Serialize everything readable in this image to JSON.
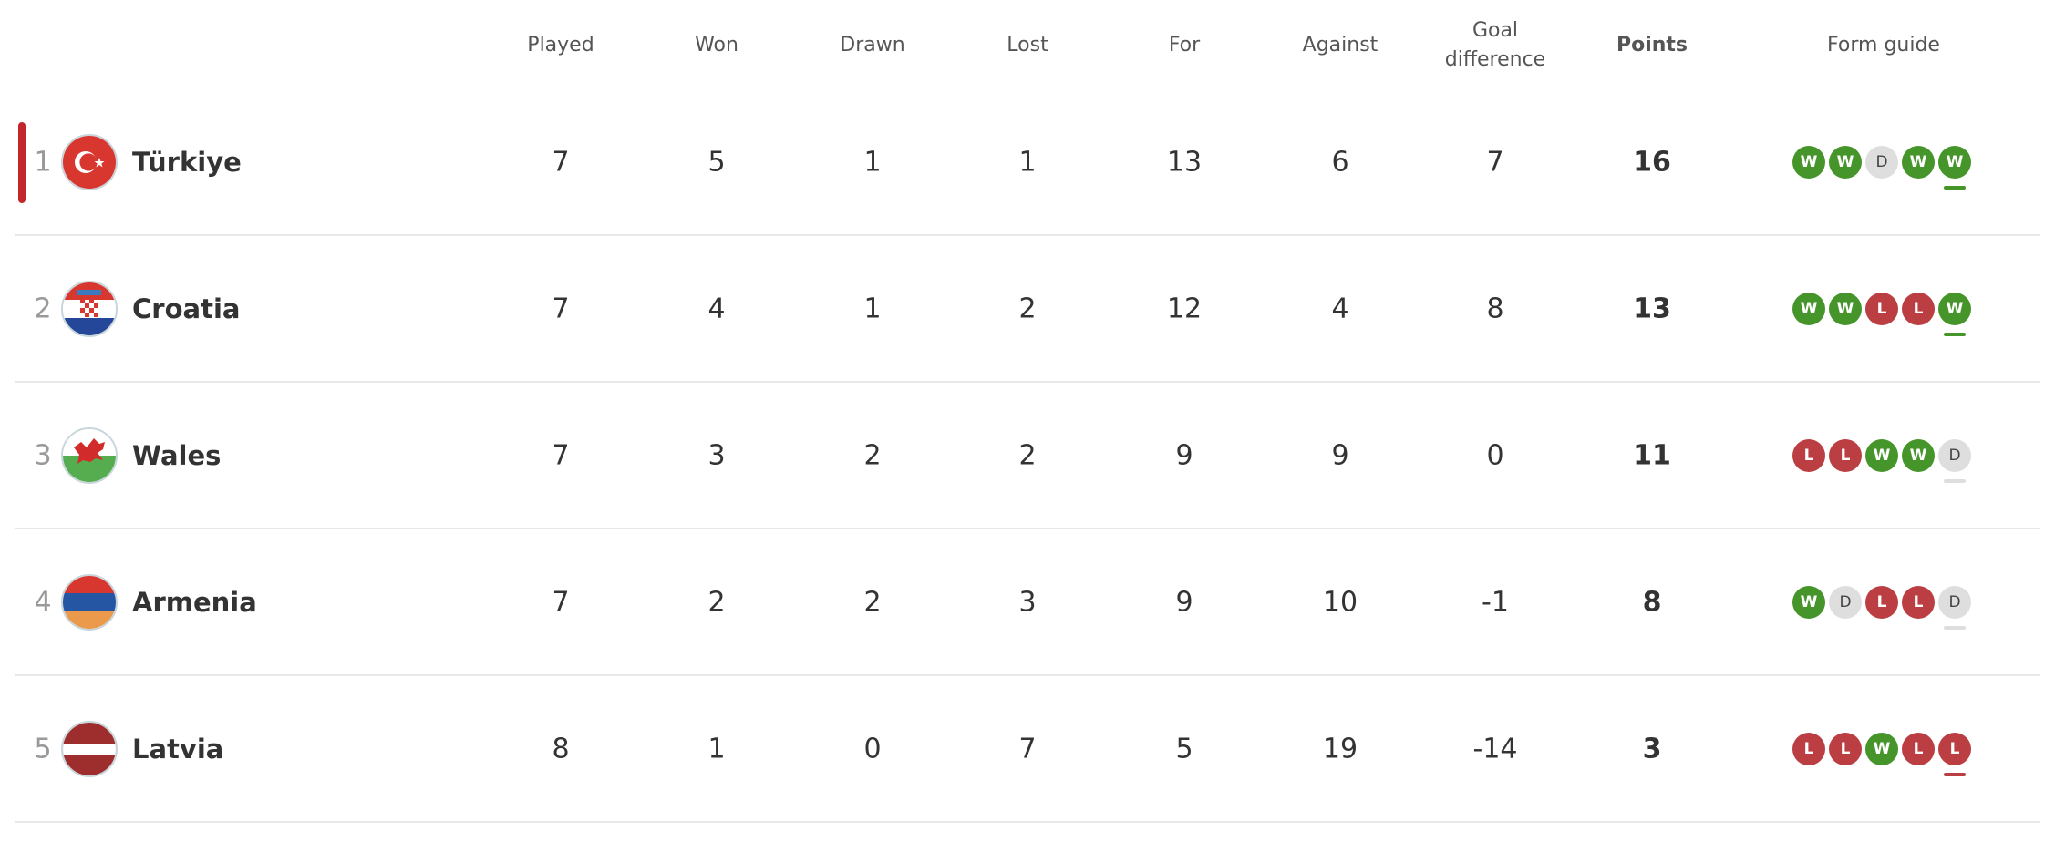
{
  "headers": {
    "played": "Played",
    "won": "Won",
    "drawn": "Drawn",
    "lost": "Lost",
    "for": "For",
    "against": "Against",
    "goal_difference": "Goal difference",
    "points": "Points",
    "form_guide": "Form guide"
  },
  "colors": {
    "win": "#45952a",
    "loss": "#bb3e42",
    "draw": "#dedede",
    "leader_marker": "#c1272d"
  },
  "rows": [
    {
      "rank": "1",
      "team": "Türkiye",
      "flag": "turkey-flag-icon",
      "played": "7",
      "won": "5",
      "drawn": "1",
      "lost": "1",
      "for": "13",
      "against": "6",
      "gd": "7",
      "points": "16",
      "form": [
        "W",
        "W",
        "D",
        "W",
        "W"
      ]
    },
    {
      "rank": "2",
      "team": "Croatia",
      "flag": "croatia-flag-icon",
      "played": "7",
      "won": "4",
      "drawn": "1",
      "lost": "2",
      "for": "12",
      "against": "4",
      "gd": "8",
      "points": "13",
      "form": [
        "W",
        "W",
        "L",
        "L",
        "W"
      ]
    },
    {
      "rank": "3",
      "team": "Wales",
      "flag": "wales-flag-icon",
      "played": "7",
      "won": "3",
      "drawn": "2",
      "lost": "2",
      "for": "9",
      "against": "9",
      "gd": "0",
      "points": "11",
      "form": [
        "L",
        "L",
        "W",
        "W",
        "D"
      ]
    },
    {
      "rank": "4",
      "team": "Armenia",
      "flag": "armenia-flag-icon",
      "played": "7",
      "won": "2",
      "drawn": "2",
      "lost": "3",
      "for": "9",
      "against": "10",
      "gd": "-1",
      "points": "8",
      "form": [
        "W",
        "D",
        "L",
        "L",
        "D"
      ]
    },
    {
      "rank": "5",
      "team": "Latvia",
      "flag": "latvia-flag-icon",
      "played": "8",
      "won": "1",
      "drawn": "0",
      "lost": "7",
      "for": "5",
      "against": "19",
      "gd": "-14",
      "points": "3",
      "form": [
        "L",
        "L",
        "W",
        "L",
        "L"
      ]
    }
  ]
}
